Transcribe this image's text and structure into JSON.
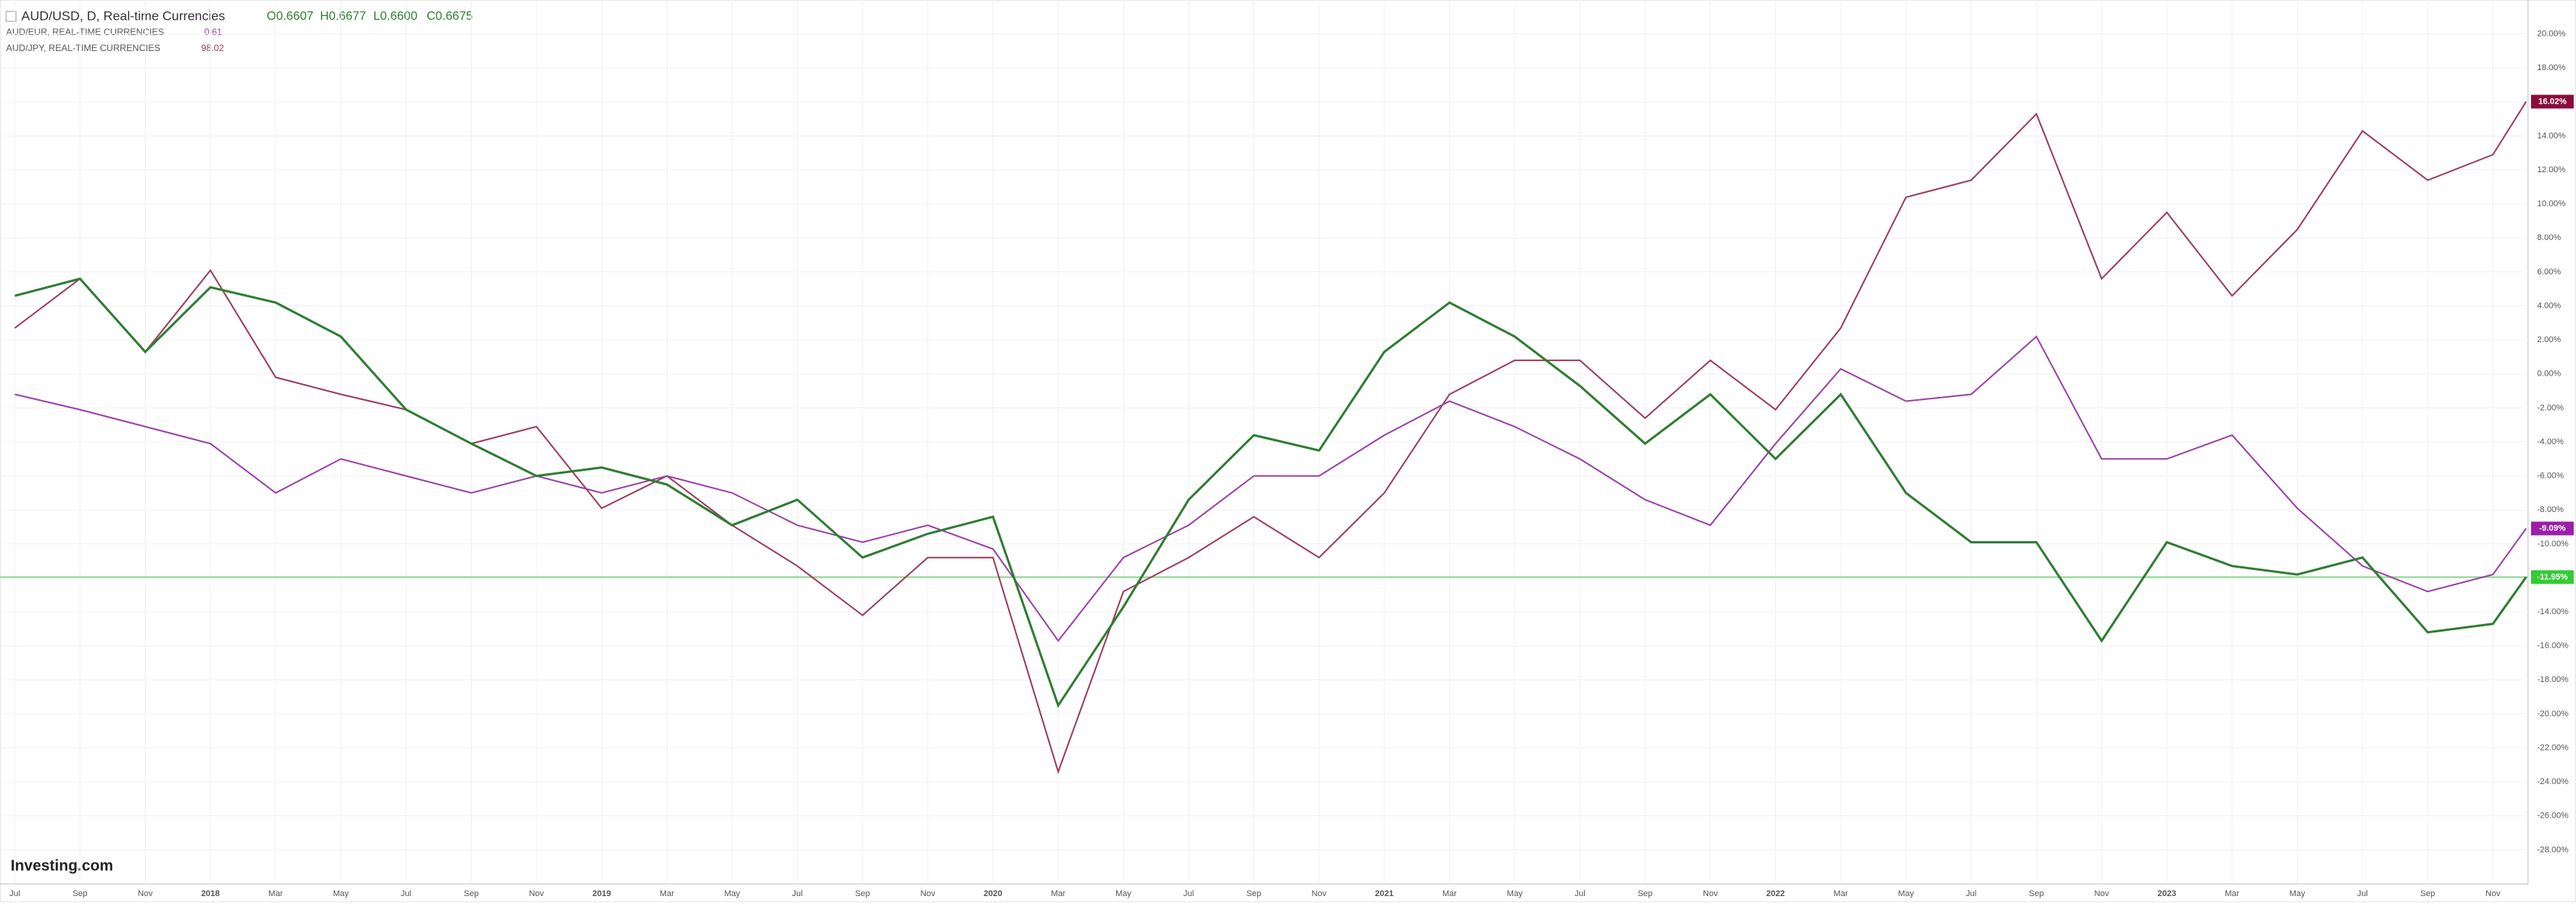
{
  "chart_data": {
    "type": "line",
    "ohlc": [
      "O0.6607",
      "H0.6677",
      "L0.6600",
      "C0.6675"
    ],
    "logo": "Investing.com",
    "categories": [
      "Jul",
      "Sep",
      "Nov",
      "2018",
      "Mar",
      "May",
      "Jul",
      "Sep",
      "Nov",
      "2019",
      "Mar",
      "May",
      "Jul",
      "Sep",
      "Nov",
      "2020",
      "Mar",
      "May",
      "Jul",
      "Sep",
      "Nov",
      "2021",
      "Mar",
      "May",
      "Jul",
      "Sep",
      "Nov",
      "2022",
      "Mar",
      "May",
      "Jul",
      "Sep",
      "Nov",
      "2023",
      "Mar",
      "May",
      "Jul",
      "Sep",
      "Nov",
      null
    ],
    "series": [
      {
        "name": "AUD/USD, D, Real-time Currencies",
        "color": "#2e7d32",
        "values": [
          4.6,
          5.6,
          1.3,
          5.1,
          4.2,
          2.2,
          -2.1,
          -4.1,
          -6.0,
          -5.5,
          -6.5,
          -8.9,
          -7.4,
          -10.8,
          -9.4,
          -8.4,
          -19.5,
          -13.7,
          -7.4,
          -3.6,
          -4.5,
          1.3,
          4.2,
          2.2,
          -0.7,
          -4.1,
          -1.2,
          -5.0,
          -1.2,
          -7.0,
          -9.9,
          -9.9,
          -15.7,
          -9.9,
          -11.3,
          -11.8,
          -10.8,
          -15.2,
          -14.7,
          -11.95
        ],
        "value_labels": [
          null,
          null,
          null,
          null,
          null,
          null,
          null,
          null,
          null,
          null,
          null,
          null,
          null,
          null,
          null,
          null,
          null,
          null,
          null,
          null,
          null,
          null,
          null,
          null,
          null,
          null,
          null,
          null,
          null,
          null,
          null,
          null,
          null,
          null,
          null,
          null,
          null,
          null,
          null,
          "-11.95%"
        ],
        "badge_color": "#33cc33"
      },
      {
        "name": "AUD/EUR, REAL-TIME CURRENCIES",
        "color": "#9b3fa8",
        "price": 0.61,
        "values": [
          -1.2,
          -2.1,
          -3.1,
          -4.1,
          -7.0,
          -5.0,
          -6.0,
          -7.0,
          -6.0,
          -7.0,
          -6.0,
          -7.0,
          -8.9,
          -9.9,
          -8.9,
          -10.3,
          -15.7,
          -10.8,
          -8.9,
          -6.0,
          -6.0,
          -3.6,
          -1.6,
          -3.1,
          -5.0,
          -7.4,
          -8.9,
          -4.1,
          0.3,
          -1.6,
          -1.2,
          2.2,
          -5.0,
          -5.0,
          -3.6,
          -7.9,
          -11.3,
          -12.8,
          -11.8,
          -9.09
        ],
        "value_labels": [
          null,
          null,
          null,
          null,
          null,
          null,
          null,
          null,
          null,
          null,
          null,
          null,
          null,
          null,
          null,
          null,
          null,
          null,
          null,
          null,
          null,
          null,
          null,
          null,
          null,
          null,
          null,
          null,
          null,
          null,
          null,
          null,
          null,
          null,
          null,
          null,
          null,
          null,
          null,
          "-9.09%"
        ],
        "badge_color": "#9b1fa8"
      },
      {
        "name": "AUD/JPY, REAL-TIME CURRENCIES",
        "color": "#9c3b5a",
        "price": 98.02,
        "values": [
          2.7,
          5.6,
          1.3,
          6.1,
          -0.2,
          -1.2,
          -2.1,
          -4.1,
          -3.1,
          -7.9,
          -6.0,
          -8.9,
          -11.3,
          -14.2,
          -10.8,
          -10.8,
          -23.4,
          -12.8,
          -10.8,
          -8.4,
          -10.8,
          -7.0,
          -1.2,
          0.8,
          0.8,
          -2.6,
          0.8,
          -2.1,
          2.7,
          10.4,
          11.4,
          15.3,
          5.6,
          9.5,
          4.6,
          8.5,
          14.3,
          11.4,
          12.9,
          16.02
        ],
        "value_labels": [
          null,
          null,
          null,
          null,
          null,
          null,
          null,
          null,
          null,
          null,
          null,
          null,
          null,
          null,
          null,
          null,
          null,
          null,
          null,
          null,
          null,
          null,
          null,
          null,
          null,
          null,
          null,
          null,
          null,
          null,
          null,
          null,
          null,
          null,
          null,
          null,
          null,
          null,
          null,
          "16.02%"
        ],
        "badge_color": "#8a0c3a"
      }
    ],
    "ylim": [
      -30,
      22
    ],
    "yticks": [
      {
        "value": 20,
        "label": "20.00%"
      },
      {
        "value": 18,
        "label": "18.00%"
      },
      {
        "value": 16,
        "label": "16.00%"
      },
      {
        "value": 14,
        "label": "14.00%"
      },
      {
        "value": 12,
        "label": "12.00%"
      },
      {
        "value": 10,
        "label": "10.00%"
      },
      {
        "value": 8,
        "label": "8.00%"
      },
      {
        "value": 6,
        "label": "6.00%"
      },
      {
        "value": 4,
        "label": "4.00%"
      },
      {
        "value": 2,
        "label": "2.00%"
      },
      {
        "value": 0,
        "label": "0.00%"
      },
      {
        "value": -2,
        "label": "-2.00%"
      },
      {
        "value": -4,
        "label": "-4.00%"
      },
      {
        "value": -6,
        "label": "-6.00%"
      },
      {
        "value": -8,
        "label": "-8.00%"
      },
      {
        "value": -10,
        "label": "-10.00%"
      },
      {
        "value": -12,
        "label": "-12.00%"
      },
      {
        "value": -14,
        "label": "-14.00%"
      },
      {
        "value": -16,
        "label": "-16.00%"
      },
      {
        "value": -18,
        "label": "-18.00%"
      },
      {
        "value": -20,
        "label": "-20.00%"
      },
      {
        "value": -22,
        "label": "-22.00%"
      },
      {
        "value": -24,
        "label": "-24.00%"
      },
      {
        "value": -26,
        "label": "-26.00%"
      },
      {
        "value": -28,
        "label": "-28.00%"
      }
    ],
    "grid": true
  }
}
